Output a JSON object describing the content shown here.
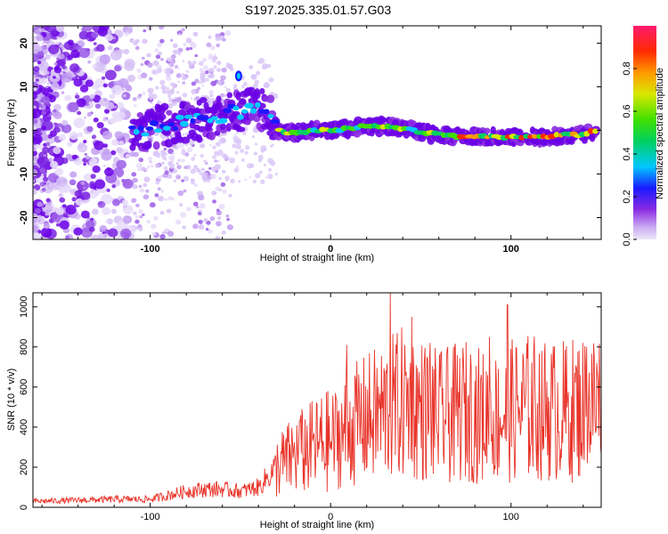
{
  "title": "S197.2025.335.01.57.G03",
  "colors": {
    "snr_line": "#e8342a",
    "frame": "#000000",
    "track": "#6a00e6"
  },
  "chart_data": [
    {
      "type": "heatmap",
      "xlabel": "Height of straight line (km)",
      "ylabel": "Frequency (Hz)",
      "xlim": [
        -165,
        150
      ],
      "ylim": [
        -25,
        24
      ],
      "xticks": [
        {
          "v": -100,
          "label": "-100"
        },
        {
          "v": 0,
          "label": "0"
        },
        {
          "v": 100,
          "label": "100"
        }
      ],
      "yticks": [
        {
          "v": 20,
          "label": "20"
        },
        {
          "v": 10,
          "label": "10"
        },
        {
          "v": 0,
          "label": "0"
        },
        {
          "v": -10,
          "label": "-10"
        },
        {
          "v": -20,
          "label": "-20"
        }
      ],
      "track": {
        "x": [
          -110,
          -100,
          -90,
          -80,
          -70,
          -60,
          -50,
          -45,
          -40,
          -35,
          -30,
          -25,
          -20,
          -10,
          0,
          10,
          20,
          30,
          40,
          50,
          60,
          70,
          80,
          90,
          100,
          110,
          120,
          130,
          140,
          148
        ],
        "freq": [
          0.0,
          0.5,
          1.5,
          2.0,
          2.5,
          3.5,
          4.5,
          5.5,
          5.0,
          4.0,
          0.5,
          -0.5,
          -0.5,
          0.0,
          0.0,
          0.5,
          1.0,
          1.0,
          0.5,
          -0.5,
          -1.0,
          -1.5,
          -1.5,
          -1.5,
          -1.5,
          -1.5,
          -1.5,
          -1.0,
          -1.0,
          0.0
        ]
      },
      "colorbar": {
        "label": "Normalized spectral amplitude",
        "range": [
          0,
          1
        ],
        "ticks": [
          {
            "v": 0.0,
            "label": "0.0"
          },
          {
            "v": 0.2,
            "label": "0.2"
          },
          {
            "v": 0.4,
            "label": "0.4"
          },
          {
            "v": 0.6,
            "label": "0.6"
          },
          {
            "v": 0.8,
            "label": "0.8"
          }
        ]
      }
    },
    {
      "type": "line",
      "xlabel": "Height of straight line (km)",
      "ylabel": "SNR (10 * v/v)",
      "xlim": [
        -165,
        150
      ],
      "ylim": [
        0,
        1070
      ],
      "xticks": [
        {
          "v": -100,
          "label": "-100"
        },
        {
          "v": 0,
          "label": "0"
        },
        {
          "v": 100,
          "label": "100"
        }
      ],
      "yticks": [
        {
          "v": 0,
          "label": "0"
        },
        {
          "v": 200,
          "label": "200"
        },
        {
          "v": 400,
          "label": "400"
        },
        {
          "v": 600,
          "label": "600"
        },
        {
          "v": 800,
          "label": "800"
        },
        {
          "v": 1000,
          "label": "1000"
        }
      ],
      "series": [
        {
          "name": "SNR",
          "x": [
            -165,
            -140,
            -120,
            -100,
            -90,
            -80,
            -70,
            -60,
            -50,
            -40,
            -35,
            -30,
            -25,
            -20,
            -15,
            -10,
            -5,
            0,
            5,
            10,
            15,
            20,
            25,
            30,
            35,
            40,
            45,
            50,
            55,
            60,
            65,
            70,
            75,
            80,
            85,
            90,
            95,
            100,
            105,
            110,
            115,
            120,
            125,
            130,
            135,
            140,
            145,
            150
          ],
          "y": [
            30,
            35,
            40,
            40,
            60,
            80,
            90,
            90,
            80,
            100,
            150,
            200,
            230,
            260,
            280,
            300,
            320,
            330,
            360,
            390,
            420,
            440,
            460,
            480,
            500,
            520,
            510,
            490,
            470,
            450,
            450,
            470,
            480,
            470,
            450,
            440,
            460,
            480,
            490,
            500,
            500,
            490,
            480,
            480,
            490,
            500,
            510,
            540
          ],
          "spikes": [
            {
              "x": -17,
              "y": 430
            },
            {
              "x": 9,
              "y": 810
            },
            {
              "x": 33,
              "y": 1070
            },
            {
              "x": 45,
              "y": 950
            },
            {
              "x": 55,
              "y": 820
            },
            {
              "x": 65,
              "y": 800
            },
            {
              "x": 78,
              "y": 700
            },
            {
              "x": 88,
              "y": 850
            },
            {
              "x": 98,
              "y": 1010
            },
            {
              "x": 117,
              "y": 780
            },
            {
              "x": 142,
              "y": 800
            }
          ]
        }
      ]
    }
  ]
}
